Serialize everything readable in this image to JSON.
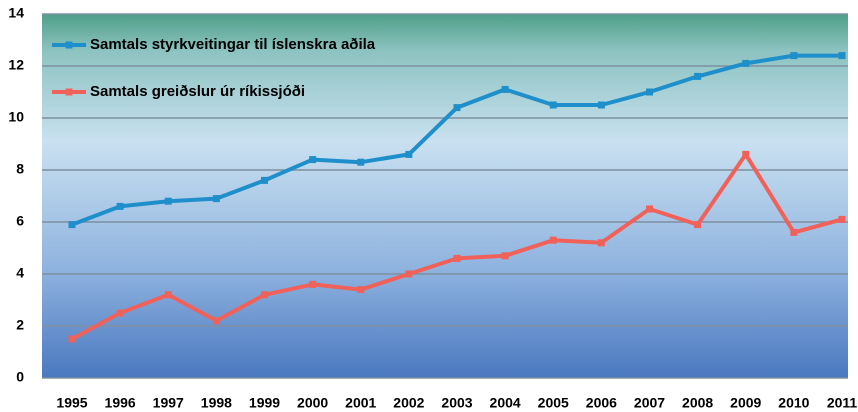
{
  "chart_data": {
    "type": "line",
    "categories": [
      "1995",
      "1996",
      "1997",
      "1998",
      "1999",
      "2000",
      "2001",
      "2002",
      "2003",
      "2004",
      "2005",
      "2006",
      "2007",
      "2008",
      "2009",
      "2010",
      "2011"
    ],
    "series": [
      {
        "name": "Samtals styrkveitingar til íslenskra aðila",
        "color": "#1e8fcb",
        "values": [
          5.9,
          6.6,
          6.8,
          6.9,
          7.6,
          8.4,
          8.3,
          8.6,
          10.4,
          11.1,
          10.5,
          10.5,
          11.0,
          11.6,
          12.1,
          12.4,
          12.4
        ]
      },
      {
        "name": "Samtals greiðslur úr ríkissjóði",
        "color": "#f0615a",
        "values": [
          1.5,
          2.5,
          3.2,
          2.2,
          3.2,
          3.6,
          3.4,
          4.0,
          4.6,
          4.7,
          5.3,
          5.2,
          6.5,
          5.9,
          8.6,
          5.6,
          6.1
        ]
      }
    ],
    "ylim": [
      0,
      14
    ],
    "yticks": [
      0,
      2,
      4,
      6,
      8,
      10,
      12,
      14
    ],
    "grid": true,
    "legend": "top-left"
  }
}
